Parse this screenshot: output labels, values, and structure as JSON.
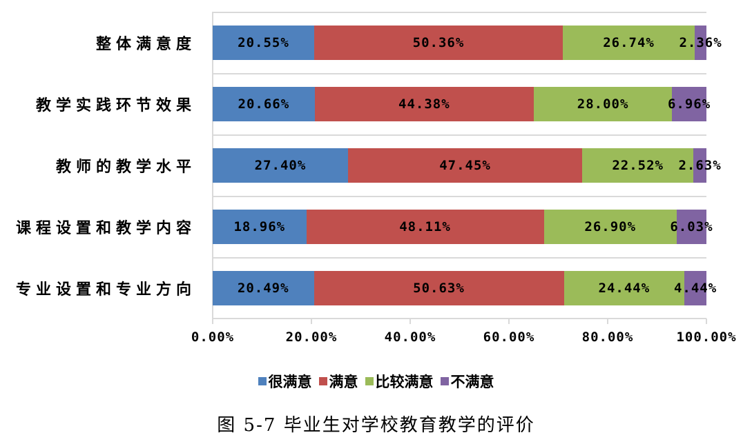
{
  "chart_data": {
    "type": "bar",
    "orientation": "horizontal",
    "stacked": "percent",
    "title": "图 5-7 毕业生对学校教育教学的评价",
    "xlabel": "",
    "ylabel": "",
    "xlim": [
      0,
      100
    ],
    "x_ticks": [
      "0.00%",
      "20.00%",
      "40.00%",
      "60.00%",
      "80.00%",
      "100.00%"
    ],
    "grid": "horizontal separators between categories",
    "legend_position": "bottom",
    "categories": [
      "整体满意度",
      "教学实践环节效果",
      "教师的教学水平",
      "课程设置和教学内容",
      "专业设置和专业方向"
    ],
    "series": [
      {
        "name": "很满意",
        "color": "#4f81bd",
        "values": [
          20.55,
          20.66,
          27.4,
          18.96,
          20.49
        ]
      },
      {
        "name": "满意",
        "color": "#c0504d",
        "values": [
          50.36,
          44.38,
          47.45,
          48.11,
          50.63
        ]
      },
      {
        "name": "比较满意",
        "color": "#9bbb59",
        "values": [
          26.74,
          28.0,
          22.52,
          26.9,
          24.44
        ]
      },
      {
        "name": "不满意",
        "color": "#8064a2",
        "values": [
          2.36,
          6.96,
          2.63,
          6.03,
          4.44
        ]
      }
    ]
  },
  "rows": [
    {
      "label": "整体满意度",
      "s0": {
        "w": "20.55%",
        "t": "20.55%"
      },
      "s1": {
        "w": "50.36%",
        "t": "50.36%"
      },
      "s2": {
        "w": "26.74%",
        "t": "26.74%"
      },
      "s3": {
        "w": "2.36%",
        "t": "2.36%"
      }
    },
    {
      "label": "教学实践环节效果",
      "s0": {
        "w": "20.66%",
        "t": "20.66%"
      },
      "s1": {
        "w": "44.38%",
        "t": "44.38%"
      },
      "s2": {
        "w": "28.00%",
        "t": "28.00%"
      },
      "s3": {
        "w": "6.96%",
        "t": "6.96%"
      }
    },
    {
      "label": "教师的教学水平",
      "s0": {
        "w": "27.40%",
        "t": "27.40%"
      },
      "s1": {
        "w": "47.45%",
        "t": "47.45%"
      },
      "s2": {
        "w": "22.52%",
        "t": "22.52%"
      },
      "s3": {
        "w": "2.63%",
        "t": "2.63%"
      }
    },
    {
      "label": "课程设置和教学内容",
      "s0": {
        "w": "18.96%",
        "t": "18.96%"
      },
      "s1": {
        "w": "48.11%",
        "t": "48.11%"
      },
      "s2": {
        "w": "26.90%",
        "t": "26.90%"
      },
      "s3": {
        "w": "6.03%",
        "t": "6.03%"
      }
    },
    {
      "label": "专业设置和专业方向",
      "s0": {
        "w": "20.49%",
        "t": "20.49%"
      },
      "s1": {
        "w": "50.63%",
        "t": "50.63%"
      },
      "s2": {
        "w": "24.44%",
        "t": "24.44%"
      },
      "s3": {
        "w": "4.44%",
        "t": "4.44%"
      }
    }
  ],
  "axis": {
    "ticks": [
      "0.00%",
      "20.00%",
      "40.00%",
      "60.00%",
      "80.00%",
      "100.00%"
    ]
  },
  "legend": {
    "items": [
      {
        "label": "很满意",
        "color": "#4f81bd"
      },
      {
        "label": "满意",
        "color": "#c0504d"
      },
      {
        "label": "比较满意",
        "color": "#9bbb59"
      },
      {
        "label": "不满意",
        "color": "#8064a2"
      }
    ]
  },
  "caption": "图 5-7 毕业生对学校教育教学的评价"
}
